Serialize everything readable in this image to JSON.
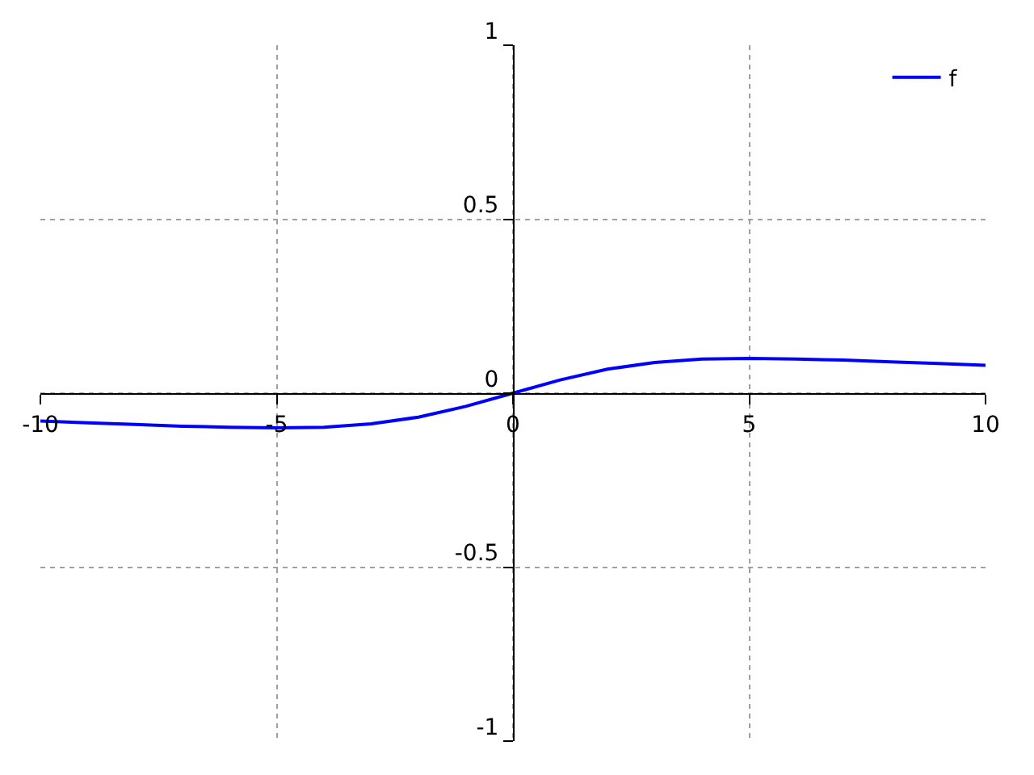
{
  "chart_data": {
    "type": "line",
    "x": [
      -10,
      -9,
      -8,
      -7,
      -6,
      -5,
      -4,
      -3,
      -2,
      -1,
      0,
      1,
      2,
      3,
      4,
      5,
      6,
      7,
      8,
      9,
      10
    ],
    "series": [
      {
        "name": "f",
        "color": "#0000ff",
        "values": [
          -0.08,
          -0.085,
          -0.09,
          -0.095,
          -0.098,
          -0.1,
          -0.098,
          -0.088,
          -0.069,
          -0.038,
          0,
          0.038,
          0.069,
          0.088,
          0.098,
          0.1,
          0.098,
          0.095,
          0.09,
          0.085,
          0.08
        ]
      }
    ],
    "xlim": [
      -10,
      10
    ],
    "ylim": [
      -1,
      1
    ],
    "xticks": [
      -10,
      -5,
      0,
      5,
      10
    ],
    "yticks": [
      -1,
      -0.5,
      0,
      0.5,
      1
    ],
    "grid": true,
    "legend": "top right",
    "line_style": "solid",
    "marker": "none"
  }
}
